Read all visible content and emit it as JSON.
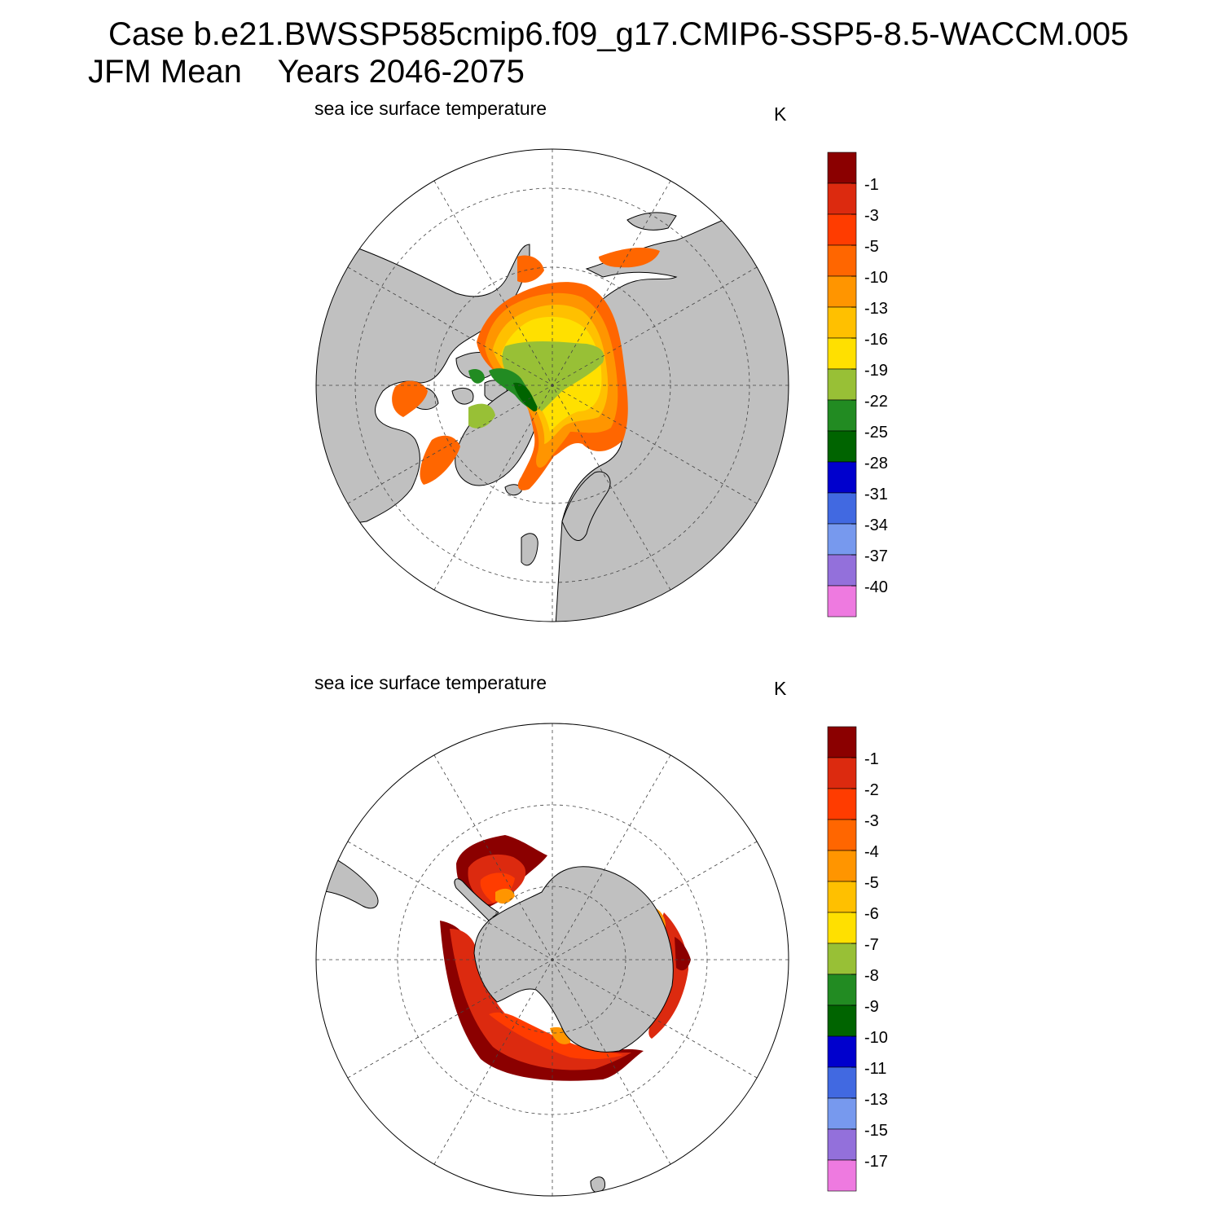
{
  "header": {
    "title_line1": "Case b.e21.BWSSP585cmip6.f09_g17.CMIP6-SSP5-8.5-WACCM.005",
    "title_line2": "JFM Mean    Years 2046-2075"
  },
  "panels": [
    {
      "id": "north",
      "hemisphere": "Northern Hemisphere (polar stereographic)",
      "title": "sea ice surface temperature",
      "unit": "K",
      "levels": [
        "-1",
        "-3",
        "-5",
        "-10",
        "-13",
        "-16",
        "-19",
        "-22",
        "-25",
        "-28",
        "-31",
        "-34",
        "-37",
        "-40"
      ]
    },
    {
      "id": "south",
      "hemisphere": "Southern Hemisphere (polar stereographic)",
      "title": "sea ice surface temperature",
      "unit": "K",
      "levels": [
        "-1",
        "-2",
        "-3",
        "-4",
        "-5",
        "-6",
        "-7",
        "-8",
        "-9",
        "-10",
        "-11",
        "-13",
        "-15",
        "-17"
      ]
    }
  ],
  "colors": {
    "land": "#c0c0c0",
    "ocean": "#ffffff",
    "palette": [
      "#8b0000",
      "#dc2a0f",
      "#ff3c00",
      "#ff6600",
      "#ff9500",
      "#ffc000",
      "#ffe000",
      "#98c036",
      "#228b22",
      "#006400",
      "#0000cd",
      "#4169e1",
      "#7799ee",
      "#9370db",
      "#ee7ae0"
    ]
  }
}
